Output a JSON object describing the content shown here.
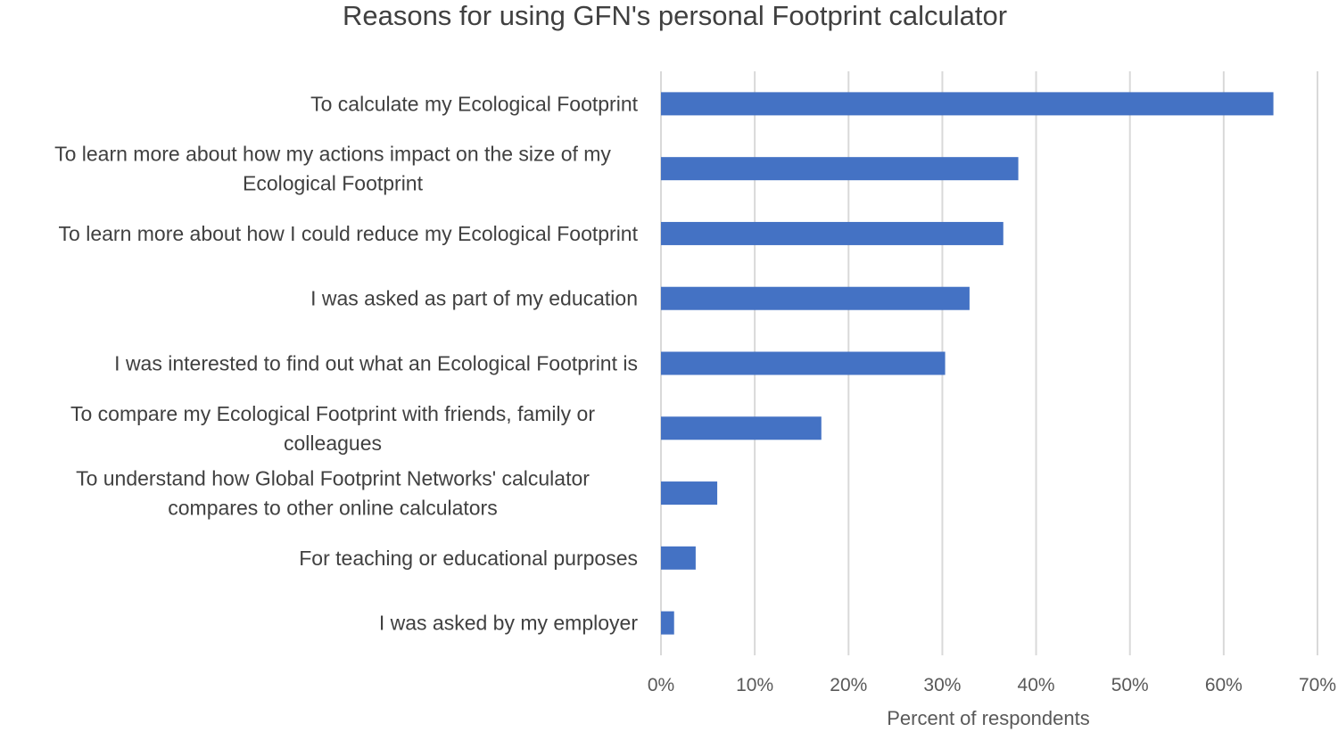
{
  "chart_data": {
    "type": "bar",
    "orientation": "horizontal",
    "title": "Reasons for using GFN's personal Footprint calculator",
    "xlabel": "Percent of respondents",
    "ylabel": "",
    "xlim": [
      0,
      70
    ],
    "x_ticks": [
      "0%",
      "10%",
      "20%",
      "30%",
      "40%",
      "50%",
      "60%",
      "70%"
    ],
    "grid": "vertical",
    "legend": "none",
    "bar_color": "#4472C4",
    "categories": [
      [
        "To calculate my Ecological Footprint"
      ],
      [
        "To learn more about how my actions impact on the size of my",
        "Ecological Footprint"
      ],
      [
        "To learn more about how I could reduce my Ecological Footprint"
      ],
      [
        "I was asked as part of my education"
      ],
      [
        "I was interested to find out what an Ecological Footprint is"
      ],
      [
        "To compare my Ecological Footprint with friends, family or",
        "colleagues"
      ],
      [
        "To understand how Global Footprint Networks' calculator",
        "compares to other online calculators"
      ],
      [
        "For teaching or educational purposes"
      ],
      [
        "I was asked by my employer"
      ]
    ],
    "values": [
      65.3,
      38.1,
      36.5,
      32.9,
      30.3,
      17.1,
      6.0,
      3.7,
      1.4
    ]
  }
}
